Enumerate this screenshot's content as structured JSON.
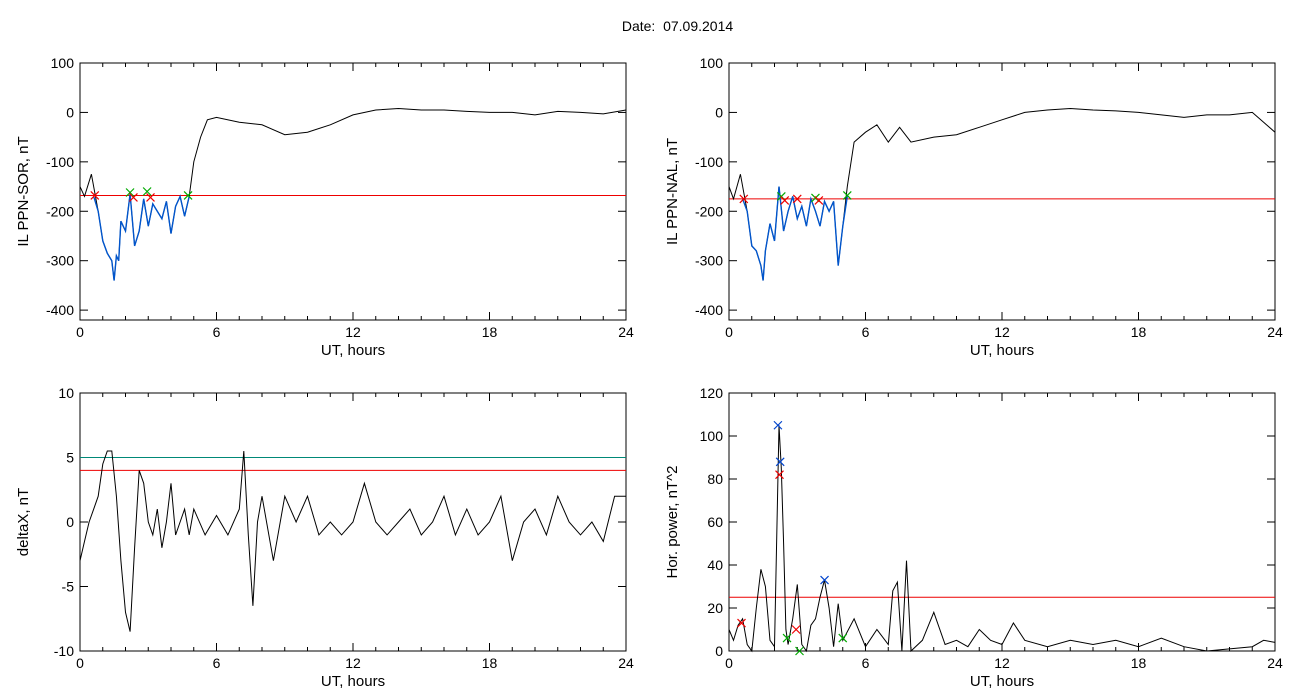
{
  "header": {
    "date_label": "Date:  07.09.2014"
  },
  "colors": {
    "trace": "#000000",
    "highlight": "#0055cc",
    "threshold": "#ee0000",
    "threshold2": "#008877",
    "mark_green": "#00aa00",
    "mark_blue": "#0044cc",
    "mark_red": "#ee0000"
  },
  "chart_data": [
    {
      "type": "line",
      "ylabel": "IL PPN-SOR, nT",
      "xlabel": "UT, hours",
      "xlim": [
        0,
        24
      ],
      "ylim": [
        -420,
        100
      ],
      "xticks": [
        0,
        6,
        12,
        18,
        24
      ],
      "yticks": [
        -400,
        -300,
        -200,
        -100,
        0,
        100
      ],
      "threshold": -168,
      "series": [
        {
          "role": "signal",
          "x": [
            0,
            0.2,
            0.5,
            0.8,
            1.0,
            1.2,
            1.4,
            1.5,
            1.6,
            1.7,
            1.8,
            2.0,
            2.2,
            2.4,
            2.6,
            2.8,
            3.0,
            3.2,
            3.4,
            3.6,
            3.8,
            4.0,
            4.2,
            4.4,
            4.6,
            4.8,
            5.0,
            5.3,
            5.6,
            6.0,
            7,
            8,
            9,
            10,
            11,
            12,
            13,
            14,
            15,
            16,
            17,
            18,
            19,
            20,
            21,
            22,
            23,
            24
          ],
          "y": [
            -150,
            -170,
            -125,
            -200,
            -260,
            -285,
            -300,
            -340,
            -290,
            -300,
            -220,
            -240,
            -165,
            -270,
            -240,
            -175,
            -230,
            -185,
            -200,
            -215,
            -180,
            -245,
            -190,
            -170,
            -210,
            -170,
            -100,
            -50,
            -15,
            -10,
            -20,
            -25,
            -45,
            -40,
            -25,
            -5,
            5,
            8,
            5,
            5,
            2,
            0,
            0,
            -5,
            2,
            0,
            -3,
            5
          ]
        },
        {
          "role": "highlight",
          "x": [
            0.6,
            0.8,
            1.0,
            1.2,
            1.4,
            1.5,
            1.6,
            1.7,
            1.8,
            2.0,
            2.2,
            2.4,
            2.6,
            2.8,
            3.0,
            3.2,
            3.4,
            3.6,
            3.8,
            4.0,
            4.2,
            4.4,
            4.6,
            4.8
          ],
          "y": [
            -170,
            -200,
            -260,
            -285,
            -300,
            -340,
            -290,
            -300,
            -220,
            -240,
            -165,
            -270,
            -240,
            -175,
            -230,
            -185,
            -200,
            -215,
            -180,
            -245,
            -190,
            -170,
            -210,
            -170
          ]
        }
      ],
      "markers": [
        {
          "x": 0.65,
          "y": -168,
          "color": "red"
        },
        {
          "x": 2.2,
          "y": -162,
          "color": "green"
        },
        {
          "x": 2.35,
          "y": -172,
          "color": "red"
        },
        {
          "x": 2.95,
          "y": -160,
          "color": "green"
        },
        {
          "x": 3.1,
          "y": -172,
          "color": "red"
        },
        {
          "x": 4.75,
          "y": -168,
          "color": "green"
        }
      ]
    },
    {
      "type": "line",
      "ylabel": "IL PPN-NAL, nT",
      "xlabel": "UT, hours",
      "xlim": [
        0,
        24
      ],
      "ylim": [
        -420,
        100
      ],
      "xticks": [
        0,
        6,
        12,
        18,
        24
      ],
      "yticks": [
        -400,
        -300,
        -200,
        -100,
        0,
        100
      ],
      "threshold": -175,
      "series": [
        {
          "role": "signal",
          "x": [
            0,
            0.2,
            0.5,
            0.8,
            1.0,
            1.2,
            1.4,
            1.5,
            1.6,
            1.8,
            2.0,
            2.2,
            2.4,
            2.6,
            2.8,
            3.0,
            3.2,
            3.4,
            3.6,
            3.8,
            4.0,
            4.2,
            4.4,
            4.6,
            4.8,
            5.0,
            5.2,
            5.5,
            6.0,
            6.5,
            7,
            7.5,
            8,
            9,
            10,
            11,
            12,
            13,
            14,
            15,
            16,
            17,
            18,
            19,
            20,
            21,
            22,
            23,
            24
          ],
          "y": [
            -150,
            -175,
            -125,
            -200,
            -270,
            -280,
            -310,
            -340,
            -280,
            -225,
            -260,
            -150,
            -240,
            -200,
            -170,
            -215,
            -190,
            -230,
            -175,
            -200,
            -230,
            -180,
            -200,
            -180,
            -310,
            -230,
            -150,
            -60,
            -40,
            -25,
            -60,
            -30,
            -60,
            -50,
            -45,
            -30,
            -15,
            0,
            5,
            8,
            5,
            3,
            0,
            -5,
            -10,
            -5,
            -5,
            0,
            -40
          ]
        },
        {
          "role": "highlight",
          "x": [
            0.6,
            0.8,
            1.0,
            1.2,
            1.4,
            1.5,
            1.6,
            1.8,
            2.0,
            2.2,
            2.4,
            2.6,
            2.8,
            3.0,
            3.2,
            3.4,
            3.6,
            3.8,
            4.0,
            4.2,
            4.4,
            4.6,
            4.8,
            5.0,
            5.2
          ],
          "y": [
            -175,
            -200,
            -270,
            -280,
            -310,
            -340,
            -280,
            -225,
            -260,
            -150,
            -240,
            -200,
            -170,
            -215,
            -190,
            -230,
            -175,
            -200,
            -230,
            -180,
            -200,
            -180,
            -310,
            -230,
            -170
          ]
        }
      ],
      "markers": [
        {
          "x": 0.65,
          "y": -175,
          "color": "red"
        },
        {
          "x": 2.3,
          "y": -170,
          "color": "green"
        },
        {
          "x": 2.45,
          "y": -178,
          "color": "red"
        },
        {
          "x": 3.0,
          "y": -175,
          "color": "red"
        },
        {
          "x": 3.8,
          "y": -173,
          "color": "green"
        },
        {
          "x": 3.95,
          "y": -178,
          "color": "red"
        },
        {
          "x": 5.2,
          "y": -168,
          "color": "green"
        }
      ]
    },
    {
      "type": "line",
      "ylabel": "deltaX, nT",
      "xlabel": "UT, hours",
      "xlim": [
        0,
        24
      ],
      "ylim": [
        -10,
        10
      ],
      "xticks": [
        0,
        6,
        12,
        18,
        24
      ],
      "yticks": [
        -10,
        -5,
        0,
        5,
        10
      ],
      "threshold": 4,
      "threshold2": 5,
      "series": [
        {
          "role": "signal",
          "x": [
            0,
            0.2,
            0.4,
            0.6,
            0.8,
            1.0,
            1.2,
            1.4,
            1.6,
            1.8,
            2.0,
            2.2,
            2.4,
            2.6,
            2.8,
            3.0,
            3.2,
            3.4,
            3.6,
            3.8,
            4.0,
            4.2,
            4.4,
            4.6,
            4.8,
            5.0,
            5.5,
            6.0,
            6.5,
            7.0,
            7.2,
            7.4,
            7.6,
            7.8,
            8.0,
            8.5,
            9.0,
            9.5,
            10,
            10.5,
            11,
            11.5,
            12,
            12.5,
            13,
            13.5,
            14,
            14.5,
            15,
            15.5,
            16,
            16.5,
            17,
            17.5,
            18,
            18.5,
            19,
            19.5,
            20,
            20.5,
            21,
            21.5,
            22,
            22.5,
            23,
            23.5,
            24
          ],
          "y": [
            -3,
            -1.5,
            0,
            1,
            2,
            4.5,
            5.5,
            5.5,
            2,
            -3,
            -7,
            -8.5,
            -2,
            4,
            3,
            0,
            -1,
            1,
            -2,
            0,
            3,
            -1,
            0,
            1,
            -1,
            1,
            -1,
            0.5,
            -1,
            1,
            5.5,
            -1,
            -6.5,
            0,
            2,
            -3,
            2,
            0,
            2,
            -1,
            0,
            -1,
            0,
            3,
            0,
            -1,
            0,
            1,
            -1,
            0,
            2,
            -1,
            1,
            -1,
            0,
            2,
            -3,
            0,
            1,
            -1,
            2,
            0,
            -1,
            0,
            -1.5,
            2,
            2
          ]
        }
      ],
      "markers": []
    },
    {
      "type": "line",
      "ylabel": "Hor. power, nT^2",
      "xlabel": "UT, hours",
      "xlim": [
        0,
        24
      ],
      "ylim": [
        0,
        120
      ],
      "xticks": [
        0,
        6,
        12,
        18,
        24
      ],
      "yticks": [
        0,
        20,
        40,
        60,
        80,
        100,
        120
      ],
      "threshold": 25,
      "series": [
        {
          "role": "signal",
          "x": [
            0,
            0.2,
            0.4,
            0.6,
            0.8,
            1.0,
            1.2,
            1.4,
            1.6,
            1.8,
            2.0,
            2.2,
            2.3,
            2.4,
            2.5,
            2.6,
            2.8,
            3.0,
            3.2,
            3.4,
            3.6,
            3.8,
            4.0,
            4.2,
            4.4,
            4.6,
            4.8,
            5.0,
            5.5,
            6.0,
            6.5,
            7.0,
            7.2,
            7.4,
            7.6,
            7.8,
            8,
            8.5,
            9,
            9.5,
            10,
            10.5,
            11,
            11.5,
            12,
            12.5,
            13,
            14,
            15,
            16,
            17,
            18,
            19,
            20,
            21,
            22,
            23,
            23.5,
            24
          ],
          "y": [
            10,
            5,
            12,
            15,
            3,
            0,
            20,
            38,
            30,
            5,
            2,
            105,
            85,
            50,
            10,
            3,
            15,
            31,
            3,
            0,
            12,
            15,
            25,
            33,
            20,
            2,
            22,
            5,
            15,
            2,
            10,
            3,
            28,
            32,
            0,
            42,
            0,
            5,
            18,
            3,
            5,
            2,
            10,
            5,
            3,
            13,
            5,
            2,
            5,
            3,
            5,
            2,
            6,
            2,
            0,
            1,
            2,
            5,
            4
          ]
        }
      ],
      "markers": [
        {
          "x": 0.55,
          "y": 13,
          "color": "red"
        },
        {
          "x": 2.15,
          "y": 105,
          "color": "blue"
        },
        {
          "x": 2.25,
          "y": 88,
          "color": "blue"
        },
        {
          "x": 2.22,
          "y": 82,
          "color": "red"
        },
        {
          "x": 2.55,
          "y": 6,
          "color": "green"
        },
        {
          "x": 2.95,
          "y": 10,
          "color": "red"
        },
        {
          "x": 3.1,
          "y": 0,
          "color": "green"
        },
        {
          "x": 4.2,
          "y": 33,
          "color": "blue"
        },
        {
          "x": 5.0,
          "y": 6,
          "color": "green"
        }
      ]
    }
  ]
}
